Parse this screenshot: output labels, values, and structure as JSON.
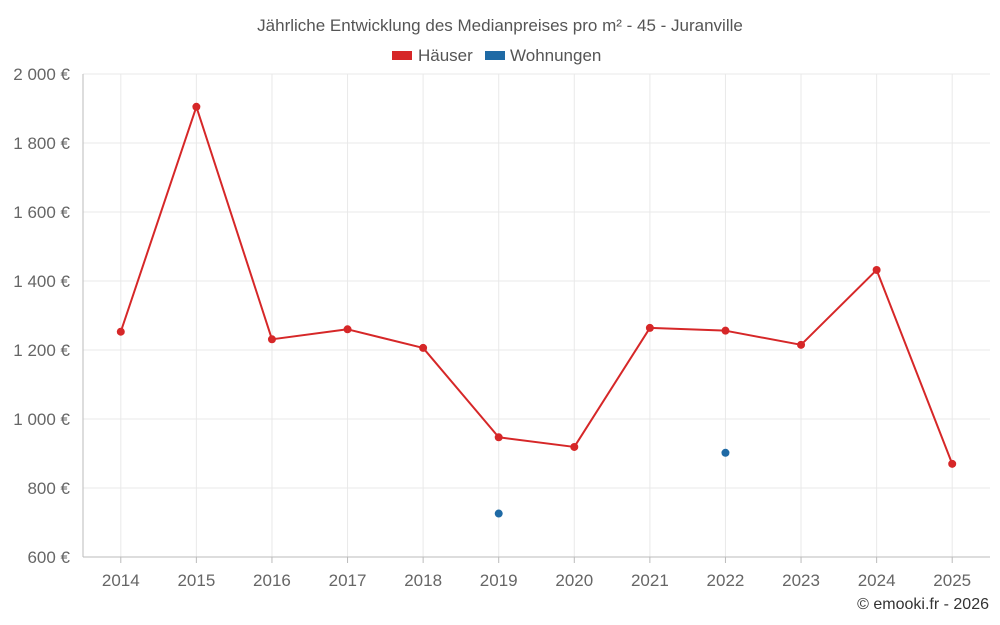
{
  "chart_data": {
    "type": "line",
    "title": "Jährliche Entwicklung des Medianpreises pro m² - 45 - Juranville",
    "categories": [
      "2014",
      "2015",
      "2016",
      "2017",
      "2018",
      "2019",
      "2020",
      "2021",
      "2022",
      "2023",
      "2024",
      "2025"
    ],
    "series": [
      {
        "name": "Häuser",
        "color": "#d62728",
        "mode": "line",
        "values": [
          1253,
          1905,
          1231,
          1260,
          1206,
          947,
          919,
          1264,
          1256,
          1215,
          1432,
          870
        ]
      },
      {
        "name": "Wohnungen",
        "color": "#1f6aa5",
        "mode": "points",
        "values": [
          null,
          null,
          null,
          null,
          null,
          726,
          null,
          null,
          902,
          null,
          null,
          null
        ]
      }
    ],
    "ylim": [
      600,
      2000
    ],
    "yticks": [
      600,
      800,
      1000,
      1200,
      1400,
      1600,
      1800,
      2000
    ],
    "ytick_labels": [
      "600 €",
      "800 €",
      "1 000 €",
      "1 200 €",
      "1 400 €",
      "1 600 €",
      "1 800 €",
      "2 000 €"
    ],
    "xlabel": "",
    "ylabel": "",
    "grid": true,
    "legend_position": "top-center"
  },
  "credit": "© emooki.fr - 2026"
}
